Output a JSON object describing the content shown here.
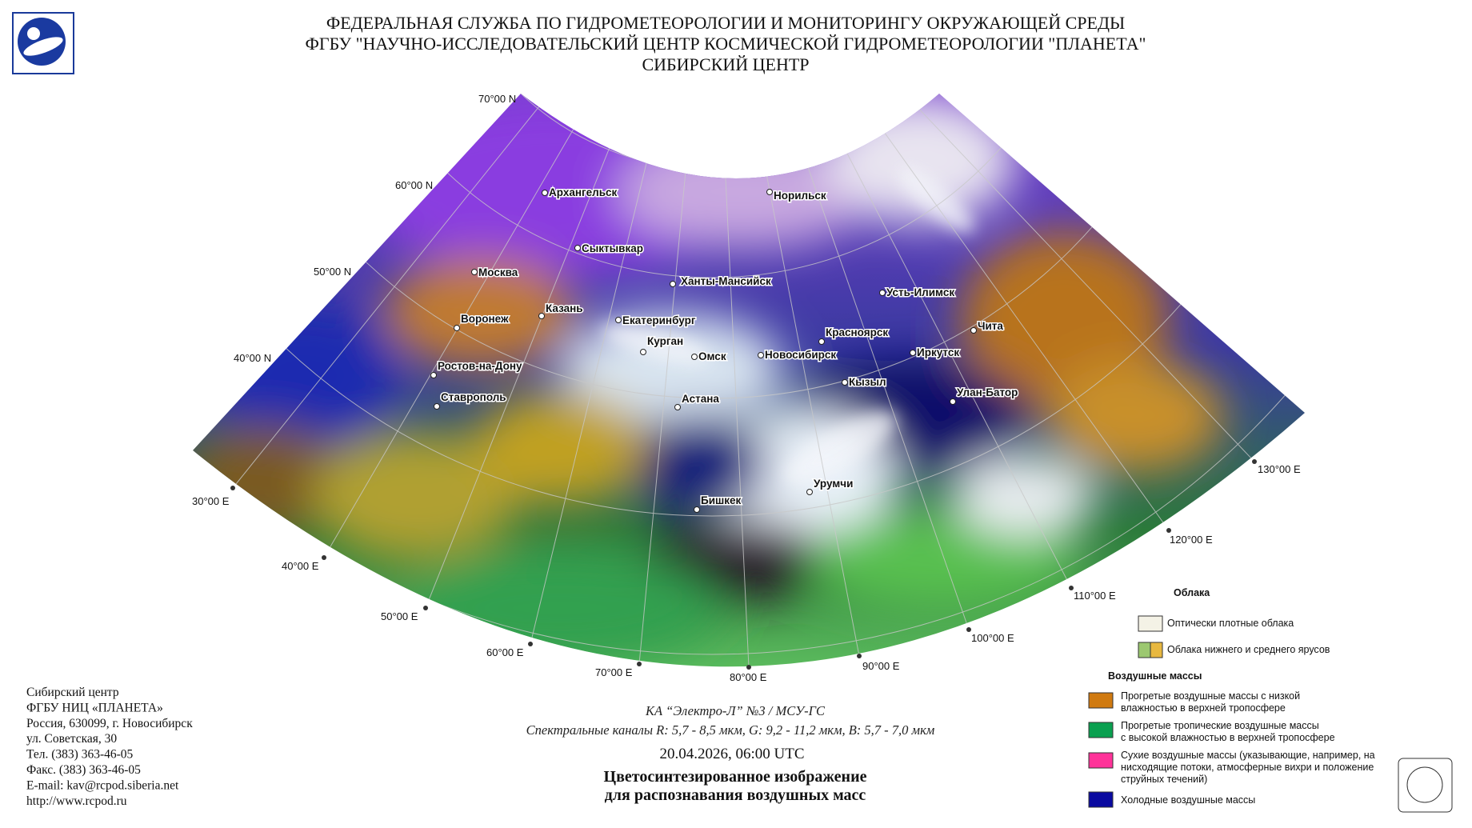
{
  "header": {
    "lines": [
      "ФЕДЕРАЛЬНАЯ СЛУЖБА ПО ГИДРОМЕТЕОРОЛОГИИ И МОНИТОРИНГУ ОКРУЖАЮЩЕЙ СРЕДЫ",
      "ФГБУ \"НАУЧНО-ИССЛЕДОВАТЕЛЬСКИЙ ЦЕНТР КОСМИЧЕСКОЙ ГИДРОМЕТЕОРОЛОГИИ \"ПЛАНЕТА\"",
      "СИБИРСКИЙ ЦЕНТР"
    ]
  },
  "map": {
    "lat_labels": [
      "70°00 N",
      "60°00 N",
      "50°00 N",
      "40°00 N"
    ],
    "lon_labels": [
      "30°00 E",
      "40°00 E",
      "50°00 E",
      "60°00 E",
      "70°00 E",
      "80°00 E",
      "90°00 E",
      "100°00 E",
      "110°00 E",
      "120°00 E",
      "130°00 E"
    ],
    "cities": [
      "Архангельск",
      "Норильск",
      "Сыктывкар",
      "Москва",
      "Ханты-Мансийск",
      "Усть-Илимск",
      "Казань",
      "Воронеж",
      "Екатеринбург",
      "Чита",
      "Красноярск",
      "Курган",
      "Омск",
      "Новосибирск",
      "Иркутск",
      "Ростов-на-Дону",
      "Кызыл",
      "Улан-Батор",
      "Ставрополь",
      "Астана",
      "Урумчи",
      "Бишкек"
    ]
  },
  "address": [
    "Сибирский центр",
    "ФГБУ НИЦ «ПЛАНЕТА»",
    "Россия, 630099, г. Новосибирск",
    "ул. Советская, 30",
    "Тел. (383) 363-46-05",
    "Факс. (383) 363-46-05",
    "E-mail: kav@rcpod.siberia.net",
    "http://www.rcpod.ru"
  ],
  "caption": {
    "satellite": "КА “Электро-Л” №3 / МСУ-ГС",
    "channels": "Спектральные каналы R: 5,7 - 8,5 мкм, G: 9,2 - 11,2 мкм, B: 5,7 - 7,0 мкм",
    "datetime": "20.04.2026, 06:00 UTC",
    "title": [
      "Цветосинтезированное изображение",
      "для распознавания воздушных масс"
    ]
  },
  "legend": {
    "clouds_title": "Облака",
    "clouds": [
      "Оптически плотные облака",
      "Облака нижнего и среднего ярусов"
    ],
    "air_title": "Воздушные массы",
    "air": [
      [
        "Прогретые воздушные массы с низкой",
        "влажностью в верхней тропосфере"
      ],
      [
        "Прогретые тропичеcкие воздушные массы",
        "с высокой влажностью в верхней тропосфере"
      ],
      [
        "Сухие воздушные массы (указывающие, например, на",
        "нисходящие потоки, атмосферные вихри и положение",
        "струйных течений)"
      ],
      [
        "Холодные воздушные массы"
      ]
    ]
  }
}
